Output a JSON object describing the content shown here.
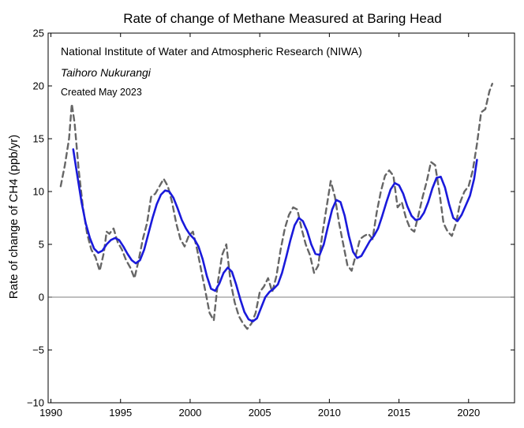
{
  "chart_data": {
    "type": "line",
    "title": "Rate of change of Methane Measured at Baring Head",
    "xlabel": "",
    "ylabel": "Rate of change of CH4 (ppb/yr)",
    "xlim": [
      1989.8,
      2023.3
    ],
    "ylim": [
      -10,
      25
    ],
    "xticks": [
      1990,
      1995,
      2000,
      2005,
      2010,
      2015,
      2020
    ],
    "yticks": [
      -10,
      -5,
      0,
      5,
      10,
      15,
      20,
      25
    ],
    "xtick_labels": [
      "1990",
      "1995",
      "2000",
      "2005",
      "2010",
      "2015",
      "2020"
    ],
    "ytick_labels": [
      "−10",
      "−5",
      "0",
      "5",
      "10",
      "15",
      "20",
      "25"
    ],
    "zero_line": true,
    "grid": false,
    "annotations": [
      "National Institute of Water and Atmospheric Research (NIWA)",
      "Taihoro Nukurangi",
      "Created May 2023"
    ],
    "series": [
      {
        "style": "dashed",
        "color": "#666666",
        "x": [
          1990.7,
          1991.0,
          1991.3,
          1991.5,
          1991.7,
          1992.0,
          1992.3,
          1992.6,
          1992.9,
          1993.2,
          1993.5,
          1993.8,
          1994.0,
          1994.2,
          1994.5,
          1994.8,
          1995.1,
          1995.4,
          1995.7,
          1996.0,
          1996.3,
          1996.6,
          1996.9,
          1997.2,
          1997.5,
          1997.8,
          1998.1,
          1998.4,
          1998.7,
          1999.0,
          1999.3,
          1999.6,
          1999.9,
          2000.2,
          2000.5,
          2000.8,
          2001.1,
          2001.4,
          2001.7,
          2002.0,
          2002.3,
          2002.6,
          2002.9,
          2003.2,
          2003.5,
          2003.8,
          2004.1,
          2004.4,
          2004.7,
          2005.0,
          2005.3,
          2005.6,
          2005.9,
          2006.2,
          2006.5,
          2006.8,
          2007.1,
          2007.4,
          2007.7,
          2008.0,
          2008.3,
          2008.6,
          2008.9,
          2009.2,
          2009.5,
          2009.8,
          2010.1,
          2010.4,
          2010.7,
          2011.0,
          2011.3,
          2011.6,
          2011.9,
          2012.2,
          2012.5,
          2012.8,
          2013.1,
          2013.4,
          2013.7,
          2014.0,
          2014.3,
          2014.6,
          2014.9,
          2015.2,
          2015.5,
          2015.8,
          2016.1,
          2016.4,
          2016.7,
          2017.0,
          2017.3,
          2017.6,
          2017.9,
          2018.2,
          2018.5,
          2018.8,
          2019.1,
          2019.4,
          2019.7,
          2020.0,
          2020.3,
          2020.6,
          2020.9,
          2021.2,
          2021.5,
          2021.7
        ],
        "y": [
          10.5,
          12.5,
          15.0,
          18.3,
          16.5,
          12.0,
          8.5,
          6.0,
          4.5,
          3.8,
          2.5,
          4.2,
          6.2,
          6.0,
          6.5,
          5.2,
          4.5,
          3.5,
          2.8,
          1.8,
          3.5,
          5.5,
          7.0,
          9.5,
          9.8,
          10.5,
          11.2,
          10.5,
          9.0,
          7.0,
          5.5,
          4.8,
          5.8,
          6.2,
          4.5,
          2.5,
          0.5,
          -1.5,
          -2.2,
          1.5,
          4.0,
          5.0,
          1.5,
          -0.5,
          -1.8,
          -2.5,
          -3.0,
          -2.5,
          -1.5,
          0.5,
          1.0,
          1.8,
          0.5,
          2.0,
          4.5,
          6.5,
          7.8,
          8.5,
          8.3,
          6.5,
          5.0,
          4.0,
          2.3,
          3.0,
          6.0,
          8.5,
          11.0,
          9.5,
          7.0,
          5.0,
          3.0,
          2.5,
          4.0,
          5.5,
          5.8,
          6.0,
          5.5,
          8.0,
          10.0,
          11.5,
          12.0,
          11.5,
          8.5,
          9.0,
          7.5,
          6.5,
          6.2,
          7.8,
          9.5,
          11.0,
          12.8,
          12.5,
          10.0,
          7.0,
          6.2,
          5.8,
          7.0,
          9.0,
          10.0,
          10.5,
          12.0,
          14.5,
          17.5,
          17.8,
          19.5,
          20.2
        ]
      },
      {
        "style": "solid",
        "color": "#1a1adb",
        "x": [
          1991.6,
          1991.9,
          1992.2,
          1992.5,
          1992.8,
          1993.1,
          1993.4,
          1993.7,
          1994.0,
          1994.3,
          1994.6,
          1994.9,
          1995.2,
          1995.5,
          1995.8,
          1996.1,
          1996.4,
          1996.7,
          1997.0,
          1997.3,
          1997.6,
          1997.9,
          1998.2,
          1998.5,
          1998.8,
          1999.1,
          1999.4,
          1999.7,
          2000.0,
          2000.3,
          2000.6,
          2000.9,
          2001.2,
          2001.5,
          2001.8,
          2002.1,
          2002.4,
          2002.7,
          2003.0,
          2003.3,
          2003.6,
          2003.9,
          2004.2,
          2004.5,
          2004.8,
          2005.1,
          2005.4,
          2005.7,
          2006.0,
          2006.3,
          2006.6,
          2006.9,
          2007.2,
          2007.5,
          2007.8,
          2008.1,
          2008.4,
          2008.7,
          2009.0,
          2009.3,
          2009.6,
          2009.9,
          2010.2,
          2010.5,
          2010.8,
          2011.1,
          2011.4,
          2011.7,
          2012.0,
          2012.3,
          2012.6,
          2012.9,
          2013.2,
          2013.5,
          2013.8,
          2014.1,
          2014.4,
          2014.7,
          2015.0,
          2015.3,
          2015.6,
          2015.9,
          2016.2,
          2016.5,
          2016.8,
          2017.1,
          2017.4,
          2017.7,
          2018.0,
          2018.3,
          2018.6,
          2018.9,
          2019.2,
          2019.5,
          2019.8,
          2020.1,
          2020.4,
          2020.6
        ],
        "y": [
          14.0,
          11.5,
          9.0,
          7.0,
          5.6,
          4.6,
          4.2,
          4.4,
          5.0,
          5.4,
          5.6,
          5.4,
          4.8,
          4.1,
          3.5,
          3.2,
          3.5,
          4.5,
          6.0,
          7.5,
          8.8,
          9.7,
          10.1,
          10.0,
          9.4,
          8.4,
          7.3,
          6.5,
          5.9,
          5.5,
          4.8,
          3.6,
          2.0,
          0.8,
          0.6,
          1.3,
          2.3,
          2.8,
          2.4,
          1.2,
          -0.2,
          -1.4,
          -2.1,
          -2.3,
          -2.0,
          -1.0,
          0.0,
          0.5,
          0.8,
          1.2,
          2.3,
          3.8,
          5.4,
          6.8,
          7.5,
          7.2,
          6.3,
          5.0,
          4.1,
          4.0,
          5.0,
          6.7,
          8.3,
          9.2,
          9.0,
          7.7,
          5.8,
          4.3,
          3.7,
          3.9,
          4.6,
          5.3,
          5.8,
          6.5,
          7.7,
          9.0,
          10.2,
          10.8,
          10.6,
          9.8,
          8.6,
          7.7,
          7.3,
          7.4,
          8.0,
          9.0,
          10.3,
          11.3,
          11.4,
          10.4,
          8.8,
          7.5,
          7.2,
          7.8,
          8.7,
          9.6,
          11.2,
          13.0
        ]
      }
    ]
  }
}
